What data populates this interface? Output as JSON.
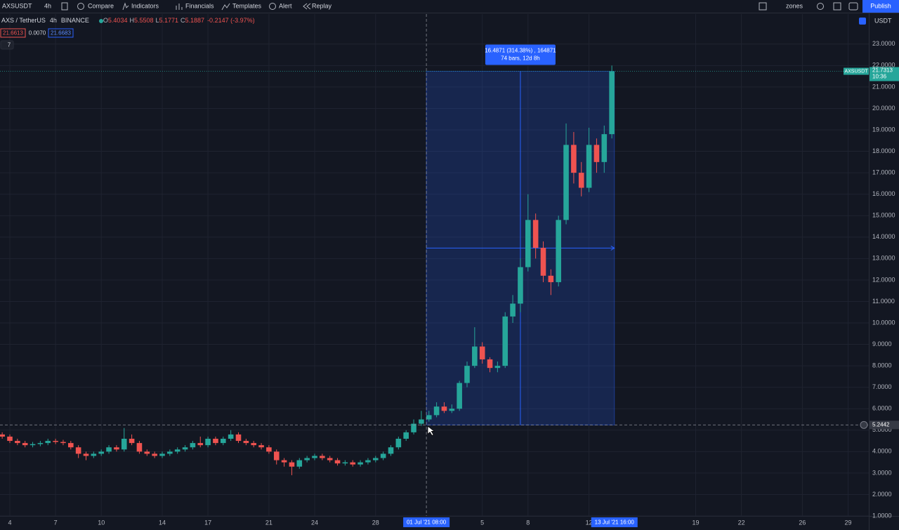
{
  "toolbar": {
    "symbol": "AXSUSDT",
    "interval": "4h",
    "compare": "Compare",
    "indicators": "Indicators",
    "financials": "Financials",
    "templates": "Templates",
    "alert": "Alert",
    "replay": "Replay",
    "layout": "zones",
    "publish": "Publish"
  },
  "legend": {
    "name": "AXS / TetherUS",
    "interval": "4h",
    "exchange": "BINANCE",
    "o_label": "O",
    "o": "5.4034",
    "h_label": "H",
    "h": "5.5508",
    "l_label": "L",
    "l": "5.1771",
    "c_label": "C",
    "c": "5.1887",
    "change": "-0.2147 (-3.97%)",
    "bid": "21.6613",
    "spread": "0.0070",
    "ask": "21.6683",
    "indicator_count": "7"
  },
  "chart_data": {
    "type": "candlestick",
    "currency": "USDT",
    "symbol_tag": "AXSUSDT",
    "last_price": 21.7313,
    "countdown": "10:36",
    "up_color": "#26a69a",
    "down_color": "#ef5350",
    "grid": true,
    "x": [
      3.5,
      4,
      4.5,
      5,
      5.5,
      6,
      6.5,
      7,
      7.5,
      8,
      8.5,
      9,
      9.5,
      10,
      10.5,
      11,
      11.5,
      12,
      12.5,
      13,
      13.5,
      14,
      14.5,
      15,
      15.5,
      16,
      16.5,
      17,
      17.5,
      18,
      18.5,
      19,
      19.5,
      20,
      20.5,
      21,
      21.5,
      22,
      22.5,
      23,
      23.5,
      24,
      24.5,
      25,
      25.5,
      26,
      26.5,
      27,
      27.5,
      28,
      28.5,
      29,
      29.5,
      30,
      30.5,
      31,
      31.5,
      32,
      32.5,
      33,
      33.5,
      34,
      34.5,
      35,
      35.5,
      36,
      36.5,
      37,
      37.5,
      38,
      38.5,
      39,
      39.5,
      40,
      40.5,
      41,
      41.5,
      42,
      42.5,
      43,
      43.5
    ],
    "open": [
      4.8,
      4.7,
      4.5,
      4.4,
      4.3,
      4.35,
      4.4,
      4.5,
      4.45,
      4.4,
      4.2,
      3.9,
      3.8,
      3.9,
      4.0,
      4.2,
      4.1,
      4.6,
      4.4,
      4.0,
      3.9,
      3.8,
      3.9,
      4.0,
      4.1,
      4.2,
      4.4,
      4.3,
      4.6,
      4.4,
      4.6,
      4.8,
      4.5,
      4.4,
      4.3,
      4.2,
      4.0,
      3.6,
      3.5,
      3.3,
      3.6,
      3.7,
      3.8,
      3.7,
      3.6,
      3.45,
      3.5,
      3.4,
      3.5,
      3.6,
      3.7,
      3.9,
      4.2,
      4.6,
      4.9,
      5.3,
      5.5,
      5.7,
      6.1,
      5.9,
      6.0,
      7.2,
      8.0,
      8.9,
      8.3,
      7.9,
      8.0,
      10.3,
      10.9,
      12.6,
      14.8,
      13.5,
      12.2,
      11.9,
      14.8,
      18.3,
      17.0,
      16.3,
      18.3,
      17.5,
      18.8
    ],
    "high": [
      4.9,
      4.8,
      4.6,
      4.5,
      4.45,
      4.5,
      4.6,
      4.6,
      4.55,
      4.5,
      4.3,
      4.0,
      4.0,
      4.1,
      4.3,
      4.3,
      5.1,
      4.8,
      4.5,
      4.1,
      4.0,
      4.0,
      4.1,
      4.2,
      4.3,
      4.5,
      4.7,
      4.7,
      4.7,
      4.7,
      5.0,
      4.9,
      4.6,
      4.5,
      4.4,
      4.3,
      4.1,
      3.7,
      3.6,
      3.7,
      3.8,
      3.9,
      3.9,
      3.8,
      3.7,
      3.6,
      3.6,
      3.6,
      3.7,
      3.8,
      4.0,
      4.3,
      4.7,
      5.0,
      5.5,
      5.9,
      5.9,
      6.3,
      6.3,
      6.2,
      7.3,
      8.2,
      9.8,
      9.1,
      8.4,
      8.2,
      10.5,
      11.3,
      13.0,
      16.0,
      15.1,
      13.8,
      12.5,
      15.0,
      19.3,
      18.9,
      17.5,
      19.1,
      18.6,
      19.2,
      22.0
    ],
    "low": [
      4.6,
      4.4,
      4.3,
      4.2,
      4.2,
      4.25,
      4.3,
      4.35,
      4.3,
      4.1,
      3.7,
      3.6,
      3.7,
      3.8,
      3.9,
      4.0,
      4.0,
      4.3,
      3.9,
      3.8,
      3.7,
      3.7,
      3.8,
      3.9,
      4.0,
      4.1,
      4.2,
      4.2,
      4.3,
      4.3,
      4.5,
      4.4,
      4.3,
      4.2,
      4.1,
      3.9,
      3.4,
      3.3,
      2.9,
      3.2,
      3.5,
      3.6,
      3.6,
      3.5,
      3.35,
      3.35,
      3.3,
      3.3,
      3.4,
      3.5,
      3.6,
      3.8,
      4.1,
      4.5,
      4.8,
      5.2,
      5.4,
      5.6,
      5.8,
      5.8,
      5.9,
      7.0,
      7.9,
      8.1,
      7.7,
      7.7,
      7.9,
      10.0,
      10.5,
      12.4,
      13.0,
      11.9,
      11.3,
      11.7,
      14.6,
      16.5,
      15.9,
      16.1,
      17.0,
      17.0,
      18.6
    ],
    "close": [
      4.7,
      4.5,
      4.4,
      4.3,
      4.35,
      4.4,
      4.5,
      4.45,
      4.4,
      4.2,
      3.9,
      3.8,
      3.9,
      4.0,
      4.2,
      4.1,
      4.6,
      4.4,
      4.0,
      3.9,
      3.8,
      3.9,
      4.0,
      4.1,
      4.2,
      4.4,
      4.3,
      4.6,
      4.4,
      4.6,
      4.8,
      4.5,
      4.4,
      4.3,
      4.2,
      4.0,
      3.6,
      3.5,
      3.3,
      3.6,
      3.7,
      3.8,
      3.7,
      3.6,
      3.45,
      3.5,
      3.4,
      3.5,
      3.6,
      3.7,
      3.9,
      4.2,
      4.6,
      4.9,
      5.3,
      5.5,
      5.7,
      6.1,
      5.9,
      6.0,
      7.2,
      8.0,
      8.9,
      8.3,
      7.9,
      8.0,
      10.3,
      10.9,
      12.6,
      14.8,
      13.5,
      12.2,
      11.9,
      14.8,
      18.3,
      17.0,
      16.3,
      18.3,
      17.5,
      18.8,
      21.7313
    ],
    "xlim": [
      3.355,
      60.36
    ],
    "ylim": [
      1,
      24.4
    ],
    "xticks": [
      4,
      7,
      10,
      14,
      17,
      21,
      24,
      28,
      {
        "value": 35,
        "label": "5"
      },
      {
        "value": 38,
        "label": "8"
      },
      {
        "value": 42,
        "label": "12"
      },
      {
        "value": 49,
        "label": "19"
      },
      {
        "value": 52,
        "label": "22"
      },
      {
        "value": 56,
        "label": "26"
      },
      {
        "value": 59,
        "label": "29"
      }
    ],
    "yticks": [
      {
        "value": 1,
        "label": "1.0000"
      },
      {
        "value": 2,
        "label": "2.0000"
      },
      {
        "value": 3,
        "label": "3.0000"
      },
      {
        "value": 4,
        "label": "4.0000"
      },
      {
        "value": 5,
        "label": "5.0000"
      },
      {
        "value": 6,
        "label": "6.0000"
      },
      {
        "value": 7,
        "label": "7.0000"
      },
      {
        "value": 8,
        "label": "8.0000"
      },
      {
        "value": 9,
        "label": "9.0000"
      },
      {
        "value": 10,
        "label": "10.0000"
      },
      {
        "value": 11,
        "label": "11.0000"
      },
      {
        "value": 12,
        "label": "12.0000"
      },
      {
        "value": 13,
        "label": "13.0000"
      },
      {
        "value": 14,
        "label": "14.0000"
      },
      {
        "value": 15,
        "label": "15.0000"
      },
      {
        "value": 16,
        "label": "16.0000"
      },
      {
        "value": 17,
        "label": "17.0000"
      },
      {
        "value": 18,
        "label": "18.0000"
      },
      {
        "value": 19,
        "label": "19.0000"
      },
      {
        "value": 20,
        "label": "20.0000"
      },
      {
        "value": 21,
        "label": "21.0000"
      },
      {
        "value": 22,
        "label": "22.0000"
      },
      {
        "value": 23,
        "label": "23.0000"
      }
    ],
    "crosshair": {
      "x": {
        "value": 31.333,
        "label": "01 Jul '21  08:00"
      },
      "price": 5.2442
    },
    "measure": {
      "x": [
        31.333,
        {
          "value": 43.667,
          "label": "13 Jul '21  16:00"
        }
      ],
      "y": [
        5.2442,
        21.7313
      ],
      "line1": "16.4871 (314.38%) , 164871",
      "line2": "74 bars, 12d 8h"
    }
  }
}
